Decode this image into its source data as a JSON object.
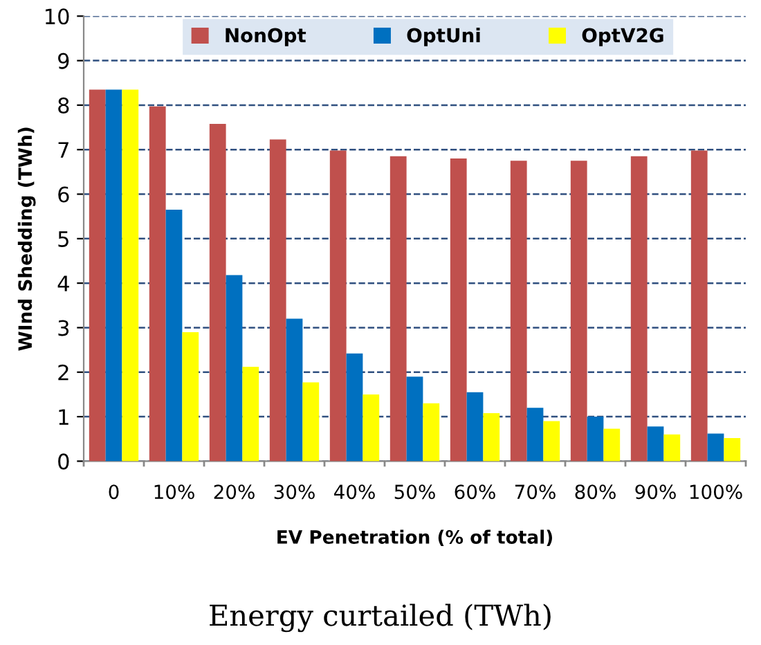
{
  "chart_data": {
    "type": "bar",
    "categories": [
      "0",
      "10%",
      "20%",
      "30%",
      "40%",
      "50%",
      "60%",
      "70%",
      "80%",
      "90%",
      "100%"
    ],
    "series": [
      {
        "name": "NonOpt",
        "color": "#c0504d",
        "values": [
          8.35,
          7.97,
          7.58,
          7.23,
          6.98,
          6.85,
          6.8,
          6.75,
          6.75,
          6.85,
          6.98
        ]
      },
      {
        "name": "OptUni",
        "color": "#0070c0",
        "values": [
          8.35,
          5.65,
          4.18,
          3.2,
          2.42,
          1.9,
          1.55,
          1.2,
          1.0,
          0.78,
          0.62
        ]
      },
      {
        "name": "OptV2G",
        "color": "#ffff00",
        "values": [
          8.35,
          2.9,
          2.12,
          1.77,
          1.5,
          1.3,
          1.08,
          0.9,
          0.73,
          0.6,
          0.52
        ]
      }
    ],
    "xlabel": "EV Penetration (% of total)",
    "ylabel": "WInd Shedding (TWh)",
    "ylim": [
      0,
      10
    ],
    "yticks": [
      0,
      1,
      2,
      3,
      4,
      5,
      6,
      7,
      8,
      9,
      10
    ],
    "grid": "y",
    "legend": "top",
    "annotations": [
      "Energy curtailed (TWh)"
    ]
  }
}
